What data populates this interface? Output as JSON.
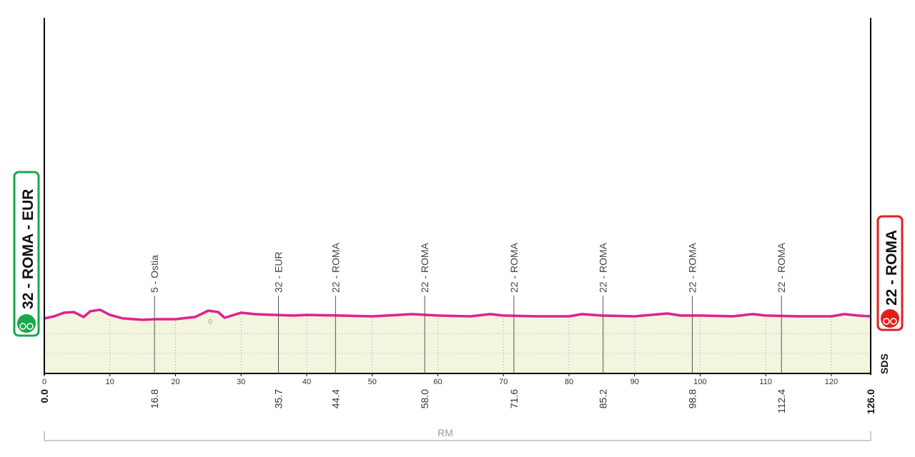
{
  "chart_data": {
    "type": "area",
    "color": "#e0228f",
    "fill": "#f3f5df",
    "xlim": [
      0,
      126
    ],
    "ylim": [
      -320,
      1920
    ],
    "xticks": [
      0,
      10,
      20,
      30,
      40,
      50,
      60,
      70,
      80,
      90,
      100,
      110,
      120
    ],
    "x": [
      0,
      1.5,
      3,
      4.5,
      6,
      7,
      8.5,
      10,
      12,
      15,
      17,
      20,
      23,
      25,
      26.5,
      27.5,
      30,
      32,
      35,
      38,
      40,
      45,
      50,
      54,
      56,
      60,
      65,
      68,
      70,
      75,
      80,
      82,
      85,
      90,
      95,
      97,
      100,
      105,
      108,
      110,
      115,
      120,
      122,
      124,
      126
    ],
    "values": [
      27,
      40,
      63,
      67,
      36,
      72,
      81,
      49,
      27,
      18,
      22,
      22,
      36,
      76,
      67,
      31,
      63,
      54,
      49,
      45,
      49,
      45,
      40,
      49,
      54,
      45,
      40,
      54,
      45,
      40,
      40,
      54,
      45,
      40,
      58,
      45,
      45,
      40,
      54,
      45,
      40,
      40,
      54,
      45,
      40
    ],
    "start": {
      "label": "32 - ROMA - EUR",
      "km": {
        "value": 0,
        "label": "0.0"
      }
    },
    "finish": {
      "label": "22 - ROMA",
      "km": {
        "value": 126,
        "label": "126.0"
      }
    },
    "waypoints": [
      {
        "km": {
          "value": 16.8,
          "label": "16.8"
        },
        "label": "5 - Ostia"
      },
      {
        "km": {
          "value": 35.7,
          "label": "35.7"
        },
        "label": "32 - EUR"
      },
      {
        "km": {
          "value": 44.4,
          "label": "44.4"
        },
        "label": "22 - ROMA"
      },
      {
        "km": {
          "value": 58,
          "label": "58.0"
        },
        "label": "22 - ROMA"
      },
      {
        "km": {
          "value": 71.6,
          "label": "71.6"
        },
        "label": "22 - ROMA"
      },
      {
        "km": {
          "value": 85.2,
          "label": "85.2"
        },
        "label": "22 - ROMA"
      },
      {
        "km": {
          "value": 98.8,
          "label": "98.8"
        },
        "label": "22 - ROMA"
      },
      {
        "km": {
          "value": 112.4,
          "label": "112.4"
        },
        "label": "22 - ROMA"
      }
    ],
    "annotation": "0",
    "region": "RM",
    "logo": "SDS"
  }
}
